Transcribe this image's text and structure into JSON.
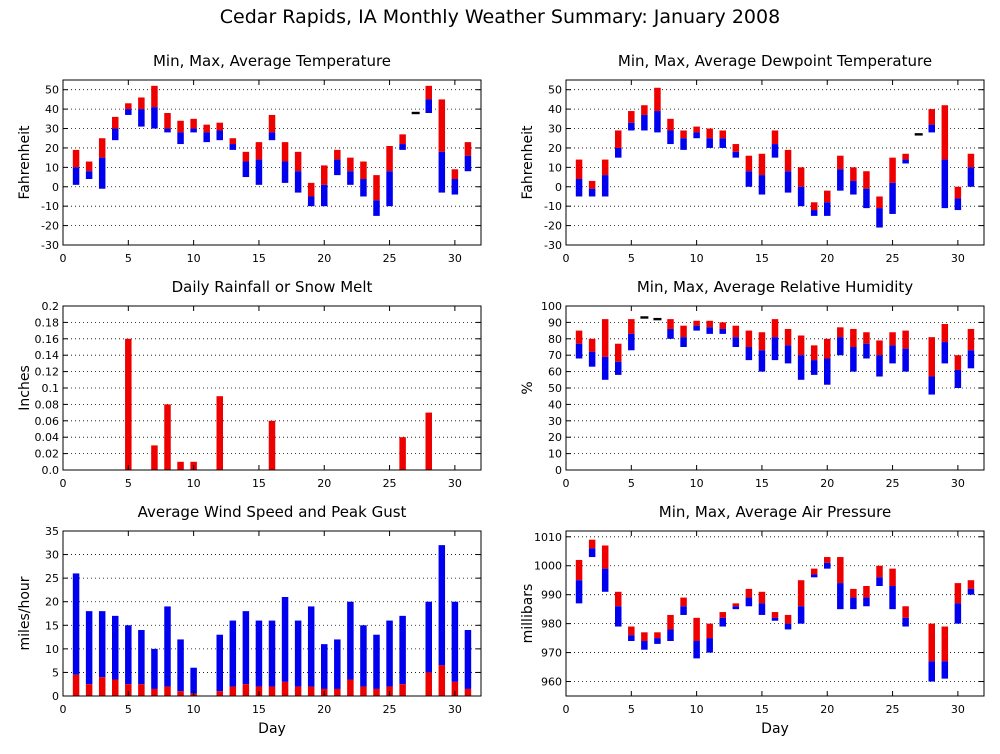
{
  "page": {
    "title": "Cedar Rapids, IA Monthly Weather Summary: January 2008"
  },
  "colors": {
    "upper": "#ee0000",
    "lower": "#0000ee",
    "avg_only": "#000000",
    "grid": "#000000"
  },
  "chart_data": [
    {
      "id": "temp",
      "type": "bar",
      "style": "min-max-avg",
      "title": "Min, Max, Average Temperature",
      "xlabel": "",
      "ylabel": "Fahrenheit",
      "xlim": [
        0,
        32
      ],
      "ylim": [
        -30,
        55
      ],
      "xticks": [
        0,
        5,
        10,
        15,
        20,
        25,
        30
      ],
      "yticks": [
        -30,
        -20,
        -10,
        0,
        10,
        20,
        30,
        40,
        50
      ],
      "grid": "horizontal-dotted",
      "days": [
        1,
        2,
        3,
        4,
        5,
        6,
        7,
        8,
        9,
        10,
        11,
        12,
        13,
        14,
        15,
        16,
        17,
        18,
        19,
        20,
        21,
        22,
        23,
        24,
        25,
        26,
        27,
        28,
        29,
        30,
        31
      ],
      "min": [
        1,
        4,
        -1,
        24,
        37,
        31,
        30,
        28,
        22,
        28,
        23,
        24,
        19,
        5,
        1,
        24,
        2,
        -3,
        -10,
        -10,
        6,
        1,
        -5,
        -15,
        -10,
        19,
        null,
        38,
        -3,
        -4,
        8
      ],
      "max": [
        19,
        13,
        25,
        36,
        43,
        46,
        52,
        38,
        34,
        35,
        32,
        33,
        25,
        18,
        23,
        37,
        23,
        18,
        2,
        11,
        19,
        15,
        13,
        6,
        21,
        27,
        null,
        52,
        45,
        9,
        23
      ],
      "avg": [
        10,
        8,
        15,
        30,
        40,
        40,
        41,
        30,
        28,
        30,
        28,
        29,
        22,
        13,
        14,
        28,
        13,
        8,
        -5,
        1,
        14,
        8,
        4,
        -7,
        8,
        22,
        38,
        45,
        18,
        4,
        16
      ]
    },
    {
      "id": "dewpoint",
      "type": "bar",
      "style": "min-max-avg",
      "title": "Min, Max, Average Dewpoint Temperature",
      "xlabel": "",
      "ylabel": "Fahrenheit",
      "xlim": [
        0,
        32
      ],
      "ylim": [
        -30,
        55
      ],
      "xticks": [
        0,
        5,
        10,
        15,
        20,
        25,
        30
      ],
      "yticks": [
        -30,
        -20,
        -10,
        0,
        10,
        20,
        30,
        40,
        50
      ],
      "grid": "horizontal-dotted",
      "days": [
        1,
        2,
        3,
        4,
        5,
        6,
        7,
        8,
        9,
        10,
        11,
        12,
        13,
        14,
        15,
        16,
        17,
        18,
        19,
        20,
        21,
        22,
        23,
        24,
        25,
        26,
        27,
        28,
        29,
        30,
        31
      ],
      "min": [
        -5,
        -5,
        -5,
        15,
        29,
        29,
        28,
        22,
        19,
        25,
        20,
        20,
        15,
        0,
        -4,
        15,
        -3,
        -10,
        -15,
        -15,
        -2,
        -4,
        -11,
        -21,
        -14,
        12,
        null,
        28,
        -11,
        -12,
        0
      ],
      "max": [
        14,
        3,
        14,
        29,
        39,
        42,
        51,
        35,
        29,
        31,
        30,
        29,
        22,
        16,
        17,
        29,
        19,
        10,
        -8,
        -2,
        16,
        10,
        8,
        -5,
        15,
        17,
        null,
        40,
        42,
        0,
        17
      ],
      "avg": [
        4,
        -1,
        6,
        20,
        33,
        37,
        39,
        29,
        25,
        28,
        25,
        25,
        18,
        8,
        6,
        22,
        8,
        0,
        -12,
        -8,
        9,
        3,
        -1,
        -11,
        2,
        14,
        27,
        32,
        14,
        -6,
        10
      ]
    },
    {
      "id": "rain",
      "type": "bar",
      "style": "single",
      "title": "Daily Rainfall or Snow Melt",
      "xlabel": "",
      "ylabel": "Inches",
      "xlim": [
        0,
        32
      ],
      "ylim": [
        0,
        0.2
      ],
      "xticks": [
        0,
        5,
        10,
        15,
        20,
        25,
        30
      ],
      "yticks": [
        0,
        0.02,
        0.04,
        0.06,
        0.08,
        0.1,
        0.12,
        0.14,
        0.16,
        0.18,
        0.2
      ],
      "ytick_labels": [
        "0.0",
        "0.02",
        "0.04",
        "0.06",
        "0.08",
        "0.1",
        "0.12",
        "0.14",
        "0.16",
        "0.18",
        "0.2"
      ],
      "grid": "horizontal-dotted",
      "days": [
        5,
        7,
        8,
        9,
        10,
        12,
        16,
        26,
        28
      ],
      "values": [
        0.16,
        0.03,
        0.08,
        0.01,
        0.01,
        0.09,
        0.06,
        0.04,
        0.07
      ]
    },
    {
      "id": "rh",
      "type": "bar",
      "style": "min-max-avg",
      "title": "Min, Max, Average Relative Humidity",
      "xlabel": "",
      "ylabel": "%",
      "xlim": [
        0,
        32
      ],
      "ylim": [
        0,
        100
      ],
      "xticks": [
        0,
        5,
        10,
        15,
        20,
        25,
        30
      ],
      "yticks": [
        0,
        10,
        20,
        30,
        40,
        50,
        60,
        70,
        80,
        90,
        100
      ],
      "grid": "horizontal-dotted",
      "days": [
        1,
        2,
        3,
        4,
        5,
        6,
        7,
        8,
        9,
        10,
        11,
        12,
        13,
        14,
        15,
        16,
        17,
        18,
        19,
        20,
        21,
        22,
        23,
        24,
        25,
        26,
        27,
        28,
        29,
        30,
        31
      ],
      "min": [
        68,
        63,
        55,
        58,
        73,
        null,
        null,
        80,
        75,
        85,
        83,
        83,
        75,
        67,
        60,
        67,
        65,
        55,
        58,
        52,
        70,
        60,
        68,
        57,
        65,
        60,
        null,
        46,
        65,
        50,
        62
      ],
      "max": [
        85,
        80,
        92,
        77,
        92,
        null,
        null,
        92,
        88,
        91,
        91,
        90,
        88,
        85,
        84,
        92,
        86,
        82,
        76,
        80,
        87,
        86,
        84,
        79,
        84,
        85,
        null,
        81,
        89,
        70,
        86
      ],
      "avg": [
        77,
        72,
        69,
        66,
        83,
        93,
        92,
        86,
        81,
        88,
        87,
        86,
        81,
        75,
        73,
        81,
        76,
        70,
        67,
        68,
        81,
        75,
        77,
        70,
        76,
        74,
        null,
        57,
        78,
        61,
        73
      ]
    },
    {
      "id": "wind",
      "type": "bar",
      "style": "avg-peak",
      "title": "Average Wind Speed and Peak Gust",
      "xlabel": "Day",
      "ylabel": "miles/hour",
      "xlim": [
        0,
        32
      ],
      "ylim": [
        0,
        35
      ],
      "xticks": [
        0,
        5,
        10,
        15,
        20,
        25,
        30
      ],
      "yticks": [
        0,
        5,
        10,
        15,
        20,
        25,
        30,
        35
      ],
      "grid": "horizontal-dotted",
      "days": [
        1,
        2,
        3,
        4,
        5,
        6,
        7,
        8,
        9,
        10,
        11,
        12,
        13,
        14,
        15,
        16,
        17,
        18,
        19,
        20,
        21,
        22,
        23,
        24,
        25,
        26,
        27,
        28,
        29,
        30,
        31
      ],
      "peak": [
        26,
        18,
        18,
        17,
        15,
        14,
        10,
        19,
        12,
        6,
        null,
        13,
        16,
        18,
        16,
        16,
        21,
        16,
        19,
        11,
        12,
        20,
        15,
        13,
        16,
        17,
        null,
        20,
        32,
        20,
        14
      ],
      "avg": [
        4.5,
        2.5,
        4,
        3.5,
        2.5,
        2.5,
        1.5,
        2,
        1,
        0.5,
        null,
        1,
        2,
        2.5,
        2,
        2,
        3,
        2,
        2,
        1.5,
        1.5,
        3.5,
        2,
        1.5,
        2,
        2.5,
        null,
        5,
        6.5,
        3,
        1.5
      ]
    },
    {
      "id": "pressure",
      "type": "bar",
      "style": "min-max-avg",
      "title": "Min, Max, Average Air Pressure",
      "xlabel": "Day",
      "ylabel": "millibars",
      "xlim": [
        0,
        32
      ],
      "ylim": [
        955,
        1012
      ],
      "xticks": [
        0,
        5,
        10,
        15,
        20,
        25,
        30
      ],
      "yticks": [
        960,
        970,
        980,
        990,
        1000,
        1010
      ],
      "grid": "horizontal-dotted",
      "days": [
        1,
        2,
        3,
        4,
        5,
        6,
        7,
        8,
        9,
        10,
        11,
        12,
        13,
        14,
        15,
        16,
        17,
        18,
        19,
        20,
        21,
        22,
        23,
        24,
        25,
        26,
        27,
        28,
        29,
        30,
        31
      ],
      "min": [
        987,
        1003,
        991,
        979,
        974,
        971,
        973,
        974,
        983,
        968,
        970,
        979,
        985,
        986,
        983,
        981,
        978,
        980,
        996,
        999,
        985,
        985,
        986,
        993,
        985,
        979,
        null,
        960,
        961,
        980,
        990
      ],
      "max": [
        1002,
        1009,
        1007,
        991,
        979,
        977,
        977,
        983,
        989,
        982,
        980,
        984,
        987,
        992,
        991,
        984,
        983,
        995,
        999,
        1003,
        1003,
        992,
        993,
        1000,
        999,
        986,
        null,
        980,
        979,
        994,
        995
      ],
      "avg": [
        995,
        1006,
        999,
        986,
        976,
        974,
        975,
        978,
        986,
        974,
        975,
        982,
        986,
        989,
        987,
        982,
        980,
        986,
        997,
        1001,
        994,
        989,
        989,
        996,
        993,
        982,
        null,
        967,
        967,
        987,
        992
      ]
    }
  ]
}
